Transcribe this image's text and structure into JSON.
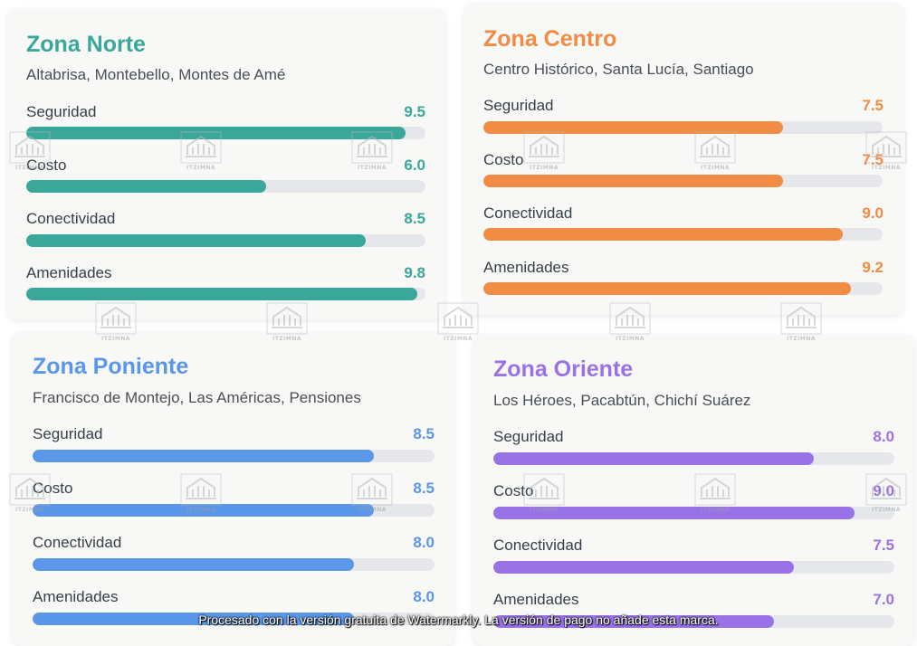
{
  "zones": [
    {
      "title": "Zona Norte",
      "subtitle": "Altabrisa, Montebello, Montes de Amé",
      "color": "#3aa79b",
      "metrics": [
        {
          "label": "Seguridad",
          "value": "9.5",
          "fraction": 0.95
        },
        {
          "label": "Costo",
          "value": "6.0",
          "fraction": 0.6
        },
        {
          "label": "Conectividad",
          "value": "8.5",
          "fraction": 0.85
        },
        {
          "label": "Amenidades",
          "value": "9.8",
          "fraction": 0.98
        }
      ]
    },
    {
      "title": "Zona Centro",
      "subtitle": "Centro Histórico, Santa Lucía, Santiago",
      "color": "#f08c43",
      "metrics": [
        {
          "label": "Seguridad",
          "value": "7.5",
          "fraction": 0.75
        },
        {
          "label": "Costo",
          "value": "7.5",
          "fraction": 0.75
        },
        {
          "label": "Conectividad",
          "value": "9.0",
          "fraction": 0.9
        },
        {
          "label": "Amenidades",
          "value": "9.2",
          "fraction": 0.92
        }
      ]
    },
    {
      "title": "Zona Poniente",
      "subtitle": "Francisco de Montejo, Las Américas, Pensiones",
      "color": "#5b97e8",
      "metrics": [
        {
          "label": "Seguridad",
          "value": "8.5",
          "fraction": 0.85
        },
        {
          "label": "Costo",
          "value": "8.5",
          "fraction": 0.85
        },
        {
          "label": "Conectividad",
          "value": "8.0",
          "fraction": 0.8
        },
        {
          "label": "Amenidades",
          "value": "8.0",
          "fraction": 0.8
        }
      ]
    },
    {
      "title": "Zona Oriente",
      "subtitle": "Los Héroes, Pacabtún, Chichí Suárez",
      "color": "#9a72e8",
      "metrics": [
        {
          "label": "Seguridad",
          "value": "8.0",
          "fraction": 0.8
        },
        {
          "label": "Costo",
          "value": "9.0",
          "fraction": 0.9
        },
        {
          "label": "Conectividad",
          "value": "7.5",
          "fraction": 0.75
        },
        {
          "label": "Amenidades",
          "value": "7.0",
          "fraction": 0.7
        }
      ]
    }
  ],
  "watermark": {
    "logo_text": "ITZIMNA",
    "banner": "Procesado con la versión gratuita de Watermarkly. La versión de pago no añade esta marca."
  }
}
